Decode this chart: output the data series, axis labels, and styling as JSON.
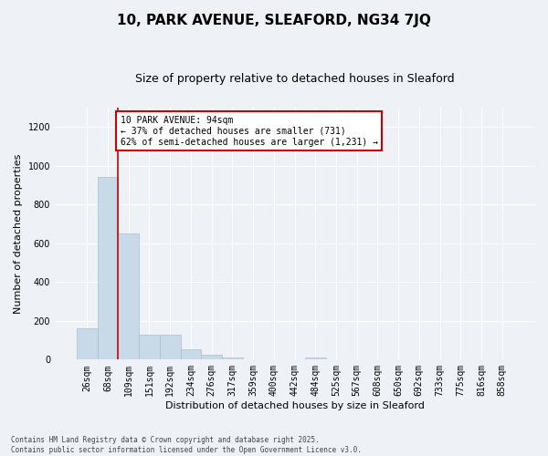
{
  "title": "10, PARK AVENUE, SLEAFORD, NG34 7JQ",
  "subtitle": "Size of property relative to detached houses in Sleaford",
  "xlabel": "Distribution of detached houses by size in Sleaford",
  "ylabel": "Number of detached properties",
  "bar_color": "#c8d9e8",
  "bar_edge_color": "#aabece",
  "background_color": "#eef2f7",
  "grid_color": "#ffffff",
  "bins": [
    "26sqm",
    "68sqm",
    "109sqm",
    "151sqm",
    "192sqm",
    "234sqm",
    "276sqm",
    "317sqm",
    "359sqm",
    "400sqm",
    "442sqm",
    "484sqm",
    "525sqm",
    "567sqm",
    "608sqm",
    "650sqm",
    "692sqm",
    "733sqm",
    "775sqm",
    "816sqm",
    "858sqm"
  ],
  "values": [
    160,
    940,
    650,
    130,
    130,
    55,
    25,
    12,
    0,
    0,
    0,
    12,
    0,
    0,
    0,
    0,
    0,
    0,
    0,
    0,
    0
  ],
  "ylim": [
    0,
    1300
  ],
  "yticks": [
    0,
    200,
    400,
    600,
    800,
    1000,
    1200
  ],
  "red_line_x": 1.5,
  "annotation_text": "10 PARK AVENUE: 94sqm\n← 37% of detached houses are smaller (731)\n62% of semi-detached houses are larger (1,231) →",
  "annotation_box_color": "#ffffff",
  "annotation_box_edge": "#cc0000",
  "footer": "Contains HM Land Registry data © Crown copyright and database right 2025.\nContains public sector information licensed under the Open Government Licence v3.0.",
  "red_line_color": "#cc0000",
  "title_fontsize": 11,
  "subtitle_fontsize": 9,
  "axis_label_fontsize": 8,
  "tick_fontsize": 7,
  "annotation_fontsize": 7,
  "footer_fontsize": 5.5
}
